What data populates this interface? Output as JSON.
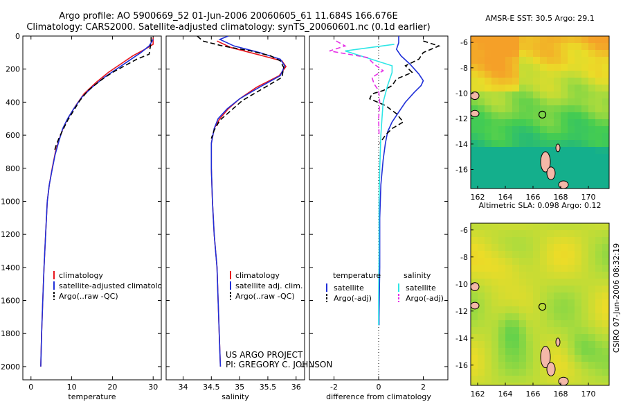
{
  "header": {
    "line1": "Argo profile: AO 5900669_52 01-Jun-2006 20060605_61 11.684S 166.676E",
    "line2": "Climatology: CARS2000. Satellite-adjusted climatology: synTS_20060601.nc (0.1d earlier)"
  },
  "credit": {
    "line1": "US ARGO PROJECT",
    "line2": "PI: GREGORY C. JOHNSON"
  },
  "stamp": "CSIRO 07-Jun-2006 08:32:19",
  "colors": {
    "red": "#e8141c",
    "blue": "#1f2fd8",
    "black": "#000000",
    "cyan": "#2ee6e6",
    "magenta": "#e62ee6"
  },
  "chart_data": [
    {
      "type": "line",
      "name": "temperature-profile",
      "xlabel": "temperature",
      "xlim": [
        -2,
        32
      ],
      "ylim": [
        2080,
        0
      ],
      "xticks": [
        0,
        10,
        20,
        30
      ],
      "yticks": [
        0,
        200,
        400,
        600,
        800,
        1000,
        1200,
        1400,
        1600,
        1800,
        2000
      ],
      "legend": [
        "climatology",
        "satellite-adjusted climatology",
        "Argo(..raw -QC)"
      ],
      "series": [
        {
          "name": "climatology",
          "color": "red",
          "dash": "",
          "points": [
            [
              30,
              10
            ],
            [
              30,
              50
            ],
            [
              28,
              80
            ],
            [
              25,
              120
            ],
            [
              22,
              170
            ],
            [
              19,
              220
            ],
            [
              16,
              280
            ],
            [
              13,
              350
            ],
            [
              11,
              420
            ],
            [
              9.5,
              480
            ],
            [
              8,
              550
            ],
            [
              7,
              620
            ],
            [
              6,
              700
            ],
            [
              5.2,
              800
            ],
            [
              4.5,
              900
            ],
            [
              4,
              1000
            ],
            [
              3.6,
              1200
            ],
            [
              3.2,
              1400
            ],
            [
              2.9,
              1600
            ],
            [
              2.6,
              1800
            ],
            [
              2.4,
              2000
            ]
          ]
        },
        {
          "name": "satellite-adjusted climatology",
          "color": "blue",
          "dash": "",
          "points": [
            [
              30,
              20
            ],
            [
              29,
              60
            ],
            [
              27,
              100
            ],
            [
              24,
              150
            ],
            [
              21,
              200
            ],
            [
              18,
              250
            ],
            [
              15,
              310
            ],
            [
              12.5,
              370
            ],
            [
              10.5,
              440
            ],
            [
              9,
              500
            ],
            [
              7.8,
              560
            ],
            [
              6.8,
              640
            ],
            [
              5.9,
              720
            ],
            [
              5.1,
              820
            ],
            [
              4.5,
              900
            ],
            [
              4,
              1000
            ],
            [
              3.6,
              1200
            ],
            [
              3.2,
              1400
            ],
            [
              2.9,
              1600
            ],
            [
              2.6,
              1800
            ],
            [
              2.4,
              2000
            ]
          ]
        },
        {
          "name": "Argo(..raw -QC)",
          "color": "black",
          "dash": "7,4",
          "points": [
            [
              29.5,
              5
            ],
            [
              29.5,
              40
            ],
            [
              29.2,
              80
            ],
            [
              29,
              110
            ],
            [
              26,
              140
            ],
            [
              23,
              180
            ],
            [
              20,
              220
            ],
            [
              17,
              270
            ],
            [
              14,
              330
            ],
            [
              12,
              390
            ],
            [
              10.5,
              450
            ],
            [
              9,
              510
            ],
            [
              8,
              560
            ],
            [
              7,
              610
            ],
            [
              6.2,
              660
            ],
            [
              5.7,
              700
            ]
          ]
        }
      ]
    },
    {
      "type": "line",
      "name": "salinity-profile",
      "xlabel": "salinity",
      "xlim": [
        33.7,
        36.15
      ],
      "ylim": [
        2080,
        0
      ],
      "xticks": [
        34,
        34.5,
        35,
        35.5,
        36
      ],
      "legend": [
        "climatology",
        "satellite adj. clim.",
        "Argo(..raw -QC)"
      ],
      "series": [
        {
          "name": "climatology",
          "color": "red",
          "dash": "",
          "points": [
            [
              34.6,
              30
            ],
            [
              34.85,
              70
            ],
            [
              35.3,
              110
            ],
            [
              35.75,
              150
            ],
            [
              35.82,
              185
            ],
            [
              35.7,
              240
            ],
            [
              35.3,
              310
            ],
            [
              35,
              380
            ],
            [
              34.8,
              440
            ],
            [
              34.65,
              500
            ],
            [
              34.55,
              560
            ],
            [
              34.5,
              650
            ],
            [
              34.5,
              800
            ],
            [
              34.52,
              1000
            ],
            [
              34.55,
              1200
            ],
            [
              34.6,
              1400
            ],
            [
              34.62,
              1600
            ],
            [
              34.64,
              1800
            ],
            [
              34.66,
              2000
            ]
          ]
        },
        {
          "name": "satellite adj. clim.",
          "color": "blue",
          "dash": "",
          "points": [
            [
              34.8,
              0
            ],
            [
              34.65,
              20
            ],
            [
              34.9,
              60
            ],
            [
              35.35,
              100
            ],
            [
              35.72,
              140
            ],
            [
              35.8,
              180
            ],
            [
              35.72,
              240
            ],
            [
              35.35,
              310
            ],
            [
              35,
              380
            ],
            [
              34.78,
              440
            ],
            [
              34.62,
              500
            ],
            [
              34.55,
              560
            ],
            [
              34.5,
              650
            ],
            [
              34.5,
              800
            ],
            [
              34.52,
              1000
            ],
            [
              34.55,
              1200
            ],
            [
              34.6,
              1400
            ],
            [
              34.62,
              1600
            ],
            [
              34.64,
              1800
            ],
            [
              34.66,
              2000
            ]
          ]
        },
        {
          "name": "Argo(..raw -QC)",
          "color": "black",
          "dash": "7,4",
          "points": [
            [
              34.25,
              0
            ],
            [
              34.35,
              30
            ],
            [
              34.7,
              60
            ],
            [
              35.2,
              90
            ],
            [
              35.55,
              120
            ],
            [
              35.72,
              150
            ],
            [
              35.78,
              190
            ],
            [
              35.75,
              250
            ],
            [
              35.4,
              320
            ],
            [
              35.05,
              390
            ],
            [
              34.85,
              450
            ],
            [
              34.65,
              510
            ],
            [
              34.55,
              570
            ],
            [
              34.5,
              620
            ]
          ]
        }
      ]
    },
    {
      "type": "line",
      "name": "difference-profile",
      "xlabel": "difference from climatology",
      "xlim": [
        -3.1,
        3.1
      ],
      "ylim": [
        2080,
        0
      ],
      "xticks": [
        -2,
        0,
        2
      ],
      "legend_titles": [
        "temperature",
        "salinity"
      ],
      "legend": [
        "satellite",
        "Argo(-adj)",
        "satellite",
        "Argo(-adj)"
      ],
      "series": [
        {
          "name": "temperature satellite",
          "color": "blue",
          "dash": "",
          "points": [
            [
              0.9,
              0
            ],
            [
              0.9,
              40
            ],
            [
              0.8,
              80
            ],
            [
              1,
              120
            ],
            [
              1.4,
              170
            ],
            [
              1.8,
              230
            ],
            [
              2,
              270
            ],
            [
              1.9,
              300
            ],
            [
              1.6,
              340
            ],
            [
              1.2,
              400
            ],
            [
              0.9,
              460
            ],
            [
              0.6,
              520
            ],
            [
              0.4,
              580
            ],
            [
              0.3,
              650
            ],
            [
              0.2,
              750
            ],
            [
              0.1,
              900
            ],
            [
              0.05,
              1100
            ],
            [
              0.05,
              1400
            ],
            [
              0.02,
              1700
            ],
            [
              0.02,
              1750
            ]
          ]
        },
        {
          "name": "temperature Argo(-adj)",
          "color": "black",
          "dash": "7,4",
          "points": [
            [
              2,
              30
            ],
            [
              2.7,
              60
            ],
            [
              2,
              100
            ],
            [
              1.8,
              140
            ],
            [
              1.2,
              180
            ],
            [
              1.5,
              220
            ],
            [
              0.8,
              260
            ],
            [
              0.6,
              300
            ],
            [
              0.2,
              330
            ],
            [
              -0.3,
              350
            ],
            [
              -0.4,
              380
            ],
            [
              0.3,
              420
            ],
            [
              0.8,
              470
            ],
            [
              1.1,
              520
            ],
            [
              0.6,
              560
            ],
            [
              0.3,
              600
            ],
            [
              0.05,
              650
            ]
          ]
        },
        {
          "name": "salinity satellite",
          "color": "cyan",
          "dash": "",
          "points": [
            [
              0.7,
              50
            ],
            [
              -1.5,
              90
            ],
            [
              -0.8,
              120
            ],
            [
              0.6,
              180
            ],
            [
              0.6,
              220
            ],
            [
              0.4,
              300
            ],
            [
              0.2,
              400
            ],
            [
              0.15,
              500
            ],
            [
              0.1,
              600
            ],
            [
              0.05,
              800
            ],
            [
              0.02,
              1000
            ],
            [
              0.02,
              1300
            ],
            [
              0,
              1600
            ],
            [
              0,
              1750
            ]
          ]
        },
        {
          "name": "salinity Argo(-adj)",
          "color": "magenta",
          "dash": "7,4",
          "points": [
            [
              -1.9,
              30
            ],
            [
              -1.5,
              60
            ],
            [
              -2.2,
              90
            ],
            [
              -0.5,
              130
            ],
            [
              -0.2,
              170
            ],
            [
              0.2,
              210
            ],
            [
              -0.3,
              250
            ],
            [
              -0.2,
              290
            ],
            [
              0,
              330
            ],
            [
              0.05,
              400
            ],
            [
              0,
              500
            ],
            [
              0.02,
              600
            ]
          ]
        }
      ]
    },
    {
      "type": "heatmap",
      "name": "sst-map",
      "title": "AMSR-E SST: 30.5 Argo: 29.1",
      "xlim": [
        161.5,
        171.5
      ],
      "ylim": [
        -17.5,
        -5.5
      ],
      "xticks": [
        162,
        164,
        166,
        168,
        170
      ],
      "yticks": [
        -6,
        -8,
        -10,
        -12,
        -14,
        -16
      ],
      "argo_location": {
        "lon": 166.676,
        "lat": -11.684
      }
    },
    {
      "type": "heatmap",
      "name": "sla-map",
      "title": "Altimetric SLA: 0.098 Argo: 0.12",
      "xlim": [
        161.5,
        171.5
      ],
      "ylim": [
        -17.5,
        -5.5
      ],
      "xticks": [
        162,
        164,
        166,
        168,
        170
      ],
      "yticks": [
        -6,
        -8,
        -10,
        -12,
        -14,
        -16
      ],
      "argo_location": {
        "lon": 166.676,
        "lat": -11.684
      }
    }
  ]
}
